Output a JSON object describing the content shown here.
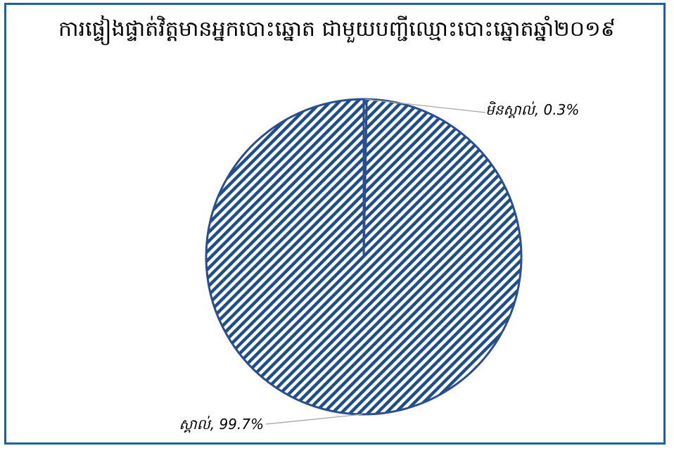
{
  "chart_data": {
    "type": "pie",
    "title": "ការផ្ទៀងផ្ទាត់វិត្តមានអ្នកបោះឆ្នោត ជាមួយបញ្ជីឈ្មោះបោះឆ្នោតឆ្នាំ២០១៩",
    "slices": [
      {
        "label": "មិនស្គាល់",
        "value": 0.3,
        "label_text": "មិនស្គាល់, 0.3%"
      },
      {
        "label": "ស្គាល់",
        "value": 99.7,
        "label_text": "ស្គាល់, 99.7%"
      }
    ],
    "colors": {
      "fill_pattern": "#1f4e8c",
      "stroke": "#2b4f8e",
      "leader": "#a6a6a6",
      "frame": "#1f5fa6"
    },
    "legend": "none"
  }
}
